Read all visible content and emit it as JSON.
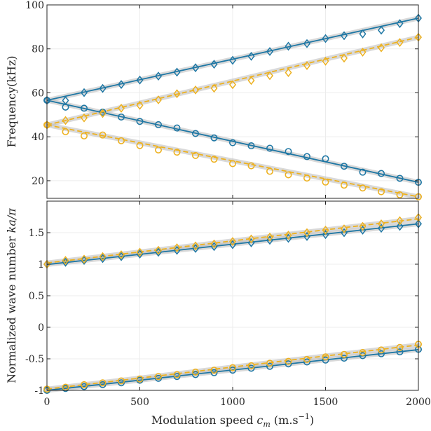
{
  "chart_data": [
    {
      "type": "line",
      "panel": "top",
      "title": "",
      "xlabel": "",
      "ylabel": "Frequency(kHz)",
      "xlim": [
        0,
        2000
      ],
      "ylim": [
        12,
        100
      ],
      "grid": true,
      "yticks": [
        "20",
        "40",
        "60",
        "80",
        "100"
      ],
      "yticks_values": [
        20,
        40,
        60,
        80,
        100
      ],
      "xticks_values": [
        0,
        500,
        1000,
        1500,
        2000
      ],
      "series": [
        {
          "color": "#1f77a4",
          "style": "solid-line",
          "x": [
            0,
            2000
          ],
          "values": [
            56.6,
            94.0
          ]
        },
        {
          "color": "#1f77a4",
          "style": "solid-line",
          "x": [
            0,
            2000
          ],
          "values": [
            56.6,
            19.3
          ]
        },
        {
          "color": "#edb120",
          "style": "dashed-line",
          "x": [
            0,
            2000
          ],
          "values": [
            45.4,
            85.3
          ]
        },
        {
          "color": "#edb120",
          "style": "dashed-line",
          "x": [
            0,
            2000
          ],
          "values": [
            45.4,
            12.7
          ]
        },
        {
          "color": "#1f77a4",
          "marker": "diamond",
          "x": [
            0,
            100,
            200,
            300,
            400,
            500,
            600,
            700,
            800,
            900,
            1000,
            1100,
            1200,
            1300,
            1400,
            1500,
            1600,
            1700,
            1800,
            1900,
            2000
          ],
          "values": [
            56.6,
            56.5,
            60.1,
            62.0,
            63.8,
            65.8,
            67.6,
            69.4,
            71.4,
            73.0,
            74.8,
            76.6,
            78.8,
            81.2,
            82.4,
            84.7,
            86.0,
            86.8,
            88.5,
            91.5,
            94.0
          ]
        },
        {
          "color": "#1f77a4",
          "marker": "circle",
          "x": [
            0,
            100,
            200,
            300,
            400,
            500,
            600,
            700,
            800,
            900,
            1000,
            1100,
            1200,
            1300,
            1400,
            1500,
            1600,
            1700,
            1800,
            1900,
            2000
          ],
          "values": [
            56.6,
            53.5,
            53.0,
            51.2,
            49.0,
            47.0,
            45.5,
            44.0,
            41.5,
            39.5,
            37.3,
            35.9,
            34.8,
            33.3,
            31.0,
            30.0,
            26.6,
            23.9,
            23.3,
            21.1,
            19.3
          ]
        },
        {
          "color": "#edb120",
          "marker": "diamond",
          "x": [
            0,
            100,
            200,
            300,
            400,
            500,
            600,
            700,
            800,
            900,
            1000,
            1100,
            1200,
            1300,
            1400,
            1500,
            1600,
            1700,
            1800,
            1900,
            2000
          ],
          "values": [
            45.4,
            47.4,
            48.6,
            50.6,
            53.0,
            54.3,
            56.8,
            59.6,
            61.3,
            62.1,
            63.7,
            65.6,
            67.8,
            69.2,
            72.4,
            74.4,
            75.8,
            78.5,
            80.5,
            82.9,
            85.3
          ]
        },
        {
          "color": "#edb120",
          "marker": "circle",
          "x": [
            0,
            100,
            200,
            300,
            400,
            500,
            600,
            700,
            800,
            900,
            1000,
            1100,
            1200,
            1300,
            1400,
            1500,
            1600,
            1700,
            1800,
            1900,
            2000
          ],
          "values": [
            45.4,
            42.3,
            40.4,
            40.8,
            38.2,
            36.0,
            34.0,
            33.0,
            31.5,
            29.8,
            27.8,
            26.8,
            24.3,
            22.7,
            21.2,
            19.4,
            18.0,
            16.7,
            15.0,
            13.6,
            12.7
          ]
        }
      ]
    },
    {
      "type": "line",
      "panel": "bottom",
      "title": "",
      "xlabel": "Modulation speed",
      "xlabel_var": "c",
      "xlabel_sub": "m",
      "xlabel_unit": "(m.s",
      "xlabel_exp": "−1",
      "xlabel_close": ")",
      "ylabel": "Normalized wave number",
      "ylabel_var": "ka/π",
      "xlim": [
        0,
        2000
      ],
      "ylim": [
        -1,
        2
      ],
      "grid": true,
      "xticks": [
        "0",
        "500",
        "1000",
        "1500",
        "2000"
      ],
      "xticks_values": [
        0,
        500,
        1000,
        1500,
        2000
      ],
      "yticks": [
        "-1",
        "-0.5",
        "0",
        "0.5",
        "1",
        "1.5"
      ],
      "yticks_values": [
        -1,
        -0.5,
        0,
        0.5,
        1,
        1.5
      ],
      "series": [
        {
          "color": "#1f77a4",
          "style": "solid-line",
          "x": [
            0,
            2000
          ],
          "values": [
            0.995,
            1.64
          ]
        },
        {
          "color": "#1f77a4",
          "style": "solid-line",
          "x": [
            0,
            2000
          ],
          "values": [
            -1.0,
            -0.355
          ]
        },
        {
          "color": "#edb120",
          "style": "dashed-line",
          "x": [
            0,
            2000
          ],
          "values": [
            1.02,
            1.72
          ]
        },
        {
          "color": "#edb120",
          "style": "dashed-line",
          "x": [
            0,
            2000
          ],
          "values": [
            -0.98,
            -0.28
          ]
        },
        {
          "color": "#1f77a4",
          "marker": "diamond",
          "x": [
            0,
            100,
            200,
            300,
            400,
            500,
            600,
            700,
            800,
            900,
            1000,
            1100,
            1200,
            1300,
            1400,
            1500,
            1600,
            1700,
            1800,
            1900,
            2000
          ],
          "values": [
            1.0,
            1.03,
            1.06,
            1.09,
            1.12,
            1.16,
            1.19,
            1.22,
            1.25,
            1.28,
            1.31,
            1.34,
            1.38,
            1.41,
            1.44,
            1.47,
            1.5,
            1.54,
            1.57,
            1.6,
            1.64
          ]
        },
        {
          "color": "#edb120",
          "marker": "diamond",
          "x": [
            0,
            100,
            200,
            300,
            400,
            500,
            600,
            700,
            800,
            900,
            1000,
            1100,
            1200,
            1300,
            1400,
            1500,
            1600,
            1700,
            1800,
            1900,
            2000
          ],
          "values": [
            1.0,
            1.06,
            1.08,
            1.12,
            1.15,
            1.19,
            1.22,
            1.26,
            1.29,
            1.32,
            1.36,
            1.4,
            1.43,
            1.46,
            1.5,
            1.54,
            1.56,
            1.6,
            1.64,
            1.69,
            1.74
          ]
        },
        {
          "color": "#1f77a4",
          "marker": "circle",
          "x": [
            0,
            100,
            200,
            300,
            400,
            500,
            600,
            700,
            800,
            900,
            1000,
            1100,
            1200,
            1300,
            1400,
            1500,
            1600,
            1700,
            1800,
            1900,
            2000
          ],
          "values": [
            -1.0,
            -0.97,
            -0.94,
            -0.91,
            -0.88,
            -0.84,
            -0.81,
            -0.78,
            -0.75,
            -0.72,
            -0.68,
            -0.65,
            -0.62,
            -0.58,
            -0.55,
            -0.52,
            -0.49,
            -0.45,
            -0.42,
            -0.39,
            -0.35
          ]
        },
        {
          "color": "#edb120",
          "marker": "circle",
          "x": [
            0,
            100,
            200,
            300,
            400,
            500,
            600,
            700,
            800,
            900,
            1000,
            1100,
            1200,
            1300,
            1400,
            1500,
            1600,
            1700,
            1800,
            1900,
            2000
          ],
          "values": [
            -0.98,
            -0.95,
            -0.91,
            -0.88,
            -0.85,
            -0.82,
            -0.78,
            -0.75,
            -0.71,
            -0.68,
            -0.64,
            -0.61,
            -0.57,
            -0.54,
            -0.51,
            -0.47,
            -0.43,
            -0.4,
            -0.36,
            -0.32,
            -0.27
          ]
        }
      ]
    }
  ]
}
